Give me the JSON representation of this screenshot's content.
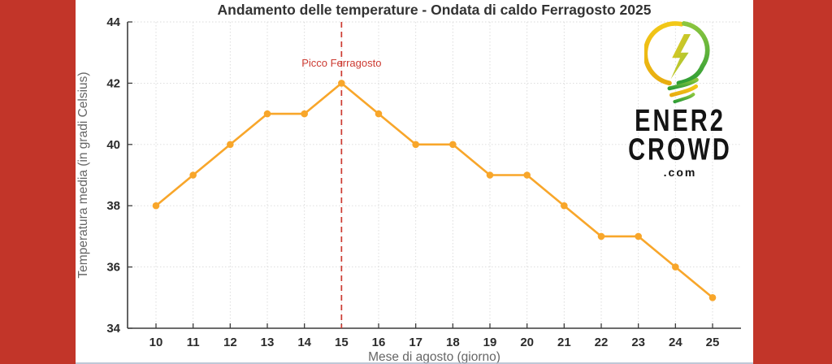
{
  "frame": {
    "side_border_color": "#c23529",
    "bottom_line_color": "#a9b6ca",
    "background_color": "#ffffff"
  },
  "branding": {
    "logo_line1": "ENER2",
    "logo_line2": "CROWD",
    "logo_domain": ".com",
    "bulb_yellow": "#f2c818",
    "bulb_yellow_deep": "#e8ad10",
    "bulb_green_light": "#8cc63f",
    "bulb_green": "#2f9e36"
  },
  "chart_data": {
    "type": "line",
    "title": "Andamento delle temperature - Ondata di caldo Ferragosto 2025",
    "xlabel": "Mese di agosto (giorno)",
    "ylabel": "Temperatura media (in gradi Celsius)",
    "x": [
      10,
      11,
      12,
      13,
      14,
      15,
      16,
      17,
      18,
      19,
      20,
      21,
      22,
      23,
      24,
      25
    ],
    "series": [
      {
        "name": "Temperatura media",
        "color": "#f8a62a",
        "values": [
          38,
          39,
          40,
          41,
          41,
          42,
          41,
          40,
          40,
          39,
          39,
          38,
          37,
          37,
          36,
          35
        ]
      }
    ],
    "ylim": [
      34,
      44
    ],
    "yticks": [
      34,
      36,
      38,
      40,
      42,
      44
    ],
    "grid": true,
    "legend_position": "none",
    "annotation": {
      "label": "Picco Ferragosto",
      "x": 15,
      "line_style": "dashed",
      "color": "#cc3a31"
    },
    "style": {
      "title_color": "#333333",
      "tick_label_color": "#2b2b2b",
      "axis_label_color": "#666666",
      "grid_color": "#d9d9d9",
      "spine_color": "#3c3c3c"
    }
  }
}
